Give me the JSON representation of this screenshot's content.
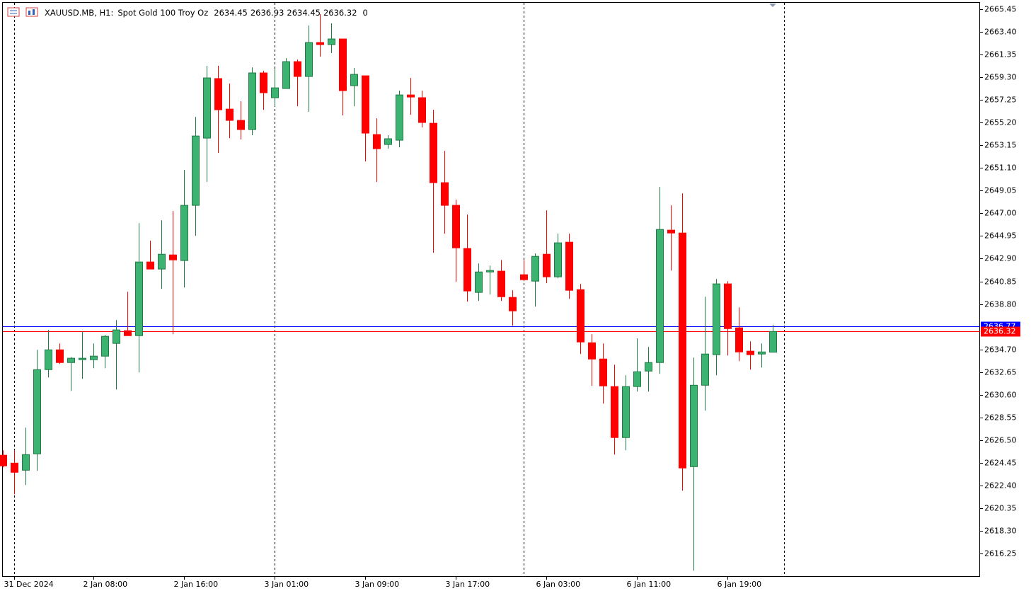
{
  "chart_data": {
    "type": "candlestick",
    "symbol": "XAUUSD.MB, H1:",
    "description": "Spot Gold 100 Troy Oz",
    "header_volume": 0,
    "up_color": "#3cb371",
    "down_color": "#ff0000",
    "bid": 2636.32,
    "ask": 2636.77,
    "bid_color": "#ff0000",
    "ask_color": "#0000ff",
    "ylim": [
      2614.14,
      2666.09
    ],
    "yticks": [
      2665.45,
      {
        "value": 2663.4,
        "label": "2663.40"
      },
      2661.35,
      {
        "value": 2659.3,
        "label": "2659.30"
      },
      2657.25,
      {
        "value": 2655.2,
        "label": "2655.20"
      },
      2653.15,
      {
        "value": 2651.1,
        "label": "2651.10"
      },
      2649.05,
      {
        "value": 2647,
        "label": "2647.00"
      },
      2644.95,
      {
        "value": 2642.9,
        "label": "2642.90"
      },
      2640.85,
      {
        "value": 2638.8,
        "label": "2638.80"
      },
      {
        "value": 2634.7,
        "label": "2634.70"
      },
      2632.65,
      {
        "value": 2630.6,
        "label": "2630.60"
      },
      2628.55,
      {
        "value": 2626.5,
        "label": "2626.50"
      },
      2624.45,
      {
        "value": 2622.4,
        "label": "2622.40"
      },
      2620.35,
      {
        "value": 2618.3,
        "label": "2618.30"
      },
      2616.25
    ],
    "categories": [
      null,
      "31 Dec 2024",
      null,
      null,
      null,
      null,
      null,
      null,
      "2 Jan 08:00",
      null,
      null,
      null,
      null,
      null,
      null,
      null,
      "2 Jan 16:00",
      null,
      null,
      null,
      null,
      null,
      null,
      null,
      "3 Jan 01:00",
      null,
      null,
      null,
      null,
      null,
      null,
      null,
      "3 Jan 09:00",
      null,
      null,
      null,
      null,
      null,
      null,
      null,
      "3 Jan 17:00",
      null,
      null,
      null,
      null,
      null,
      null,
      null,
      "6 Jan 03:00",
      null,
      null,
      null,
      null,
      null,
      null,
      null,
      "6 Jan 11:00",
      null,
      null,
      null,
      null,
      null,
      null,
      null,
      "6 Jan 19:00",
      null,
      null,
      null,
      null
    ],
    "open": [
      2625.13,
      2624.42,
      2623.78,
      2625.26,
      2632.87,
      2634.66,
      2633.51,
      2633.77,
      2633.77,
      2634.09,
      2635.24,
      2636.39,
      2635.94,
      2642.6,
      2641.96,
      2643.24,
      2642.73,
      2647.72,
      2653.8,
      2659.18,
      2656.42,
      2655.4,
      2654.57,
      2659.69,
      2657.45,
      2658.28,
      2660.71,
      2659.37,
      2662.44,
      2662.25,
      2662.76,
      2658.54,
      2659.43,
      2654.12,
      2653.22,
      2653.61,
      2657.7,
      2657.45,
      2655.14,
      2649.77,
      2647.72,
      2643.82,
      2639.85,
      2641.7,
      2641.77,
      2639.4,
      2641.45,
      2640.87,
      2643.3,
      2641.26,
      2644.39,
      2640.1,
      2635.3,
      2633.83,
      2631.34,
      2626.73,
      2631.34,
      2632.74,
      2633.51,
      2645.48,
      2645.22,
      2624.1,
      2631.46,
      2634.22,
      2640.62,
      2636.65,
      2634.54,
      2634.28,
      2634.45
    ],
    "high": [
      2625.58,
      2625.58,
      2627.62,
      2634.66,
      2636.46,
      2635.24,
      2634.02,
      2636.33,
      2635.24,
      2636.01,
      2637.35,
      2639.91,
      2646.12,
      2644.52,
      2646.38,
      2647.21,
      2650.92,
      2655.72,
      2660.33,
      2660.33,
      2658.73,
      2657.13,
      2660.2,
      2659.88,
      2660.07,
      2661.03,
      2660.9,
      2663.98,
      2665.0,
      2664.17,
      2662.76,
      2660.14,
      2659.43,
      2655.59,
      2654.06,
      2658.09,
      2659.24,
      2658.09,
      2656.36,
      2652.65,
      2648.23,
      2646.89,
      2642.47,
      2642.28,
      2642.79,
      2640.04,
      2642.79,
      2643.37,
      2647.27,
      2645.16,
      2645.16,
      2640.62,
      2636.07,
      2635.24,
      2633.32,
      2632.36,
      2635.69,
      2634.92,
      2649.38,
      2647.72,
      2648.81,
      2633.96,
      2639.46,
      2641.06,
      2640.87,
      2638.5,
      2635.43,
      2635.24,
      2636.93
    ],
    "low": [
      2624.04,
      2621.61,
      2622.44,
      2623.72,
      2632.17,
      2633.38,
      2630.95,
      2632.04,
      2633.0,
      2633.0,
      2631.08,
      2635.94,
      2632.62,
      2641.96,
      2640.17,
      2636.07,
      2640.3,
      2644.97,
      2649.83,
      2652.46,
      2653.8,
      2653.67,
      2654.06,
      2656.36,
      2656.68,
      2658.28,
      2656.68,
      2656.17,
      2661.16,
      2661.48,
      2655.85,
      2656.68,
      2651.69,
      2649.83,
      2652.84,
      2652.97,
      2655.91,
      2654.76,
      2643.43,
      2645.16,
      2640.81,
      2639.02,
      2639.08,
      2639.66,
      2639.08,
      2636.84,
      2640.87,
      2638.57,
      2640.68,
      2641.13,
      2639.27,
      2634.28,
      2631.4,
      2629.8,
      2625.19,
      2625.58,
      2630.89,
      2630.89,
      2632.49,
      2641.83,
      2621.93,
      2614.7,
      2629.16,
      2632.36,
      2634.15,
      2633.64,
      2632.87,
      2633.06,
      2634.45
    ],
    "close": [
      2624.17,
      2623.59,
      2625.19,
      2632.87,
      2634.66,
      2633.51,
      2633.9,
      2633.9,
      2634.09,
      2635.88,
      2636.46,
      2635.94,
      2642.6,
      2641.96,
      2643.3,
      2642.79,
      2647.72,
      2653.99,
      2659.24,
      2656.36,
      2655.4,
      2654.57,
      2659.69,
      2657.9,
      2658.34,
      2660.71,
      2659.37,
      2662.44,
      2662.25,
      2662.76,
      2658.09,
      2659.56,
      2654.25,
      2652.84,
      2653.74,
      2657.7,
      2657.51,
      2655.21,
      2649.77,
      2647.72,
      2643.88,
      2639.98,
      2641.7,
      2641.83,
      2639.46,
      2638.18,
      2641.0,
      2643.11,
      2641.26,
      2644.33,
      2640.04,
      2635.37,
      2633.83,
      2631.4,
      2626.73,
      2631.34,
      2632.68,
      2633.51,
      2645.54,
      2645.22,
      2623.98,
      2631.46,
      2634.28,
      2640.62,
      2636.58,
      2634.47,
      2634.22,
      2634.47,
      2636.32
    ]
  }
}
